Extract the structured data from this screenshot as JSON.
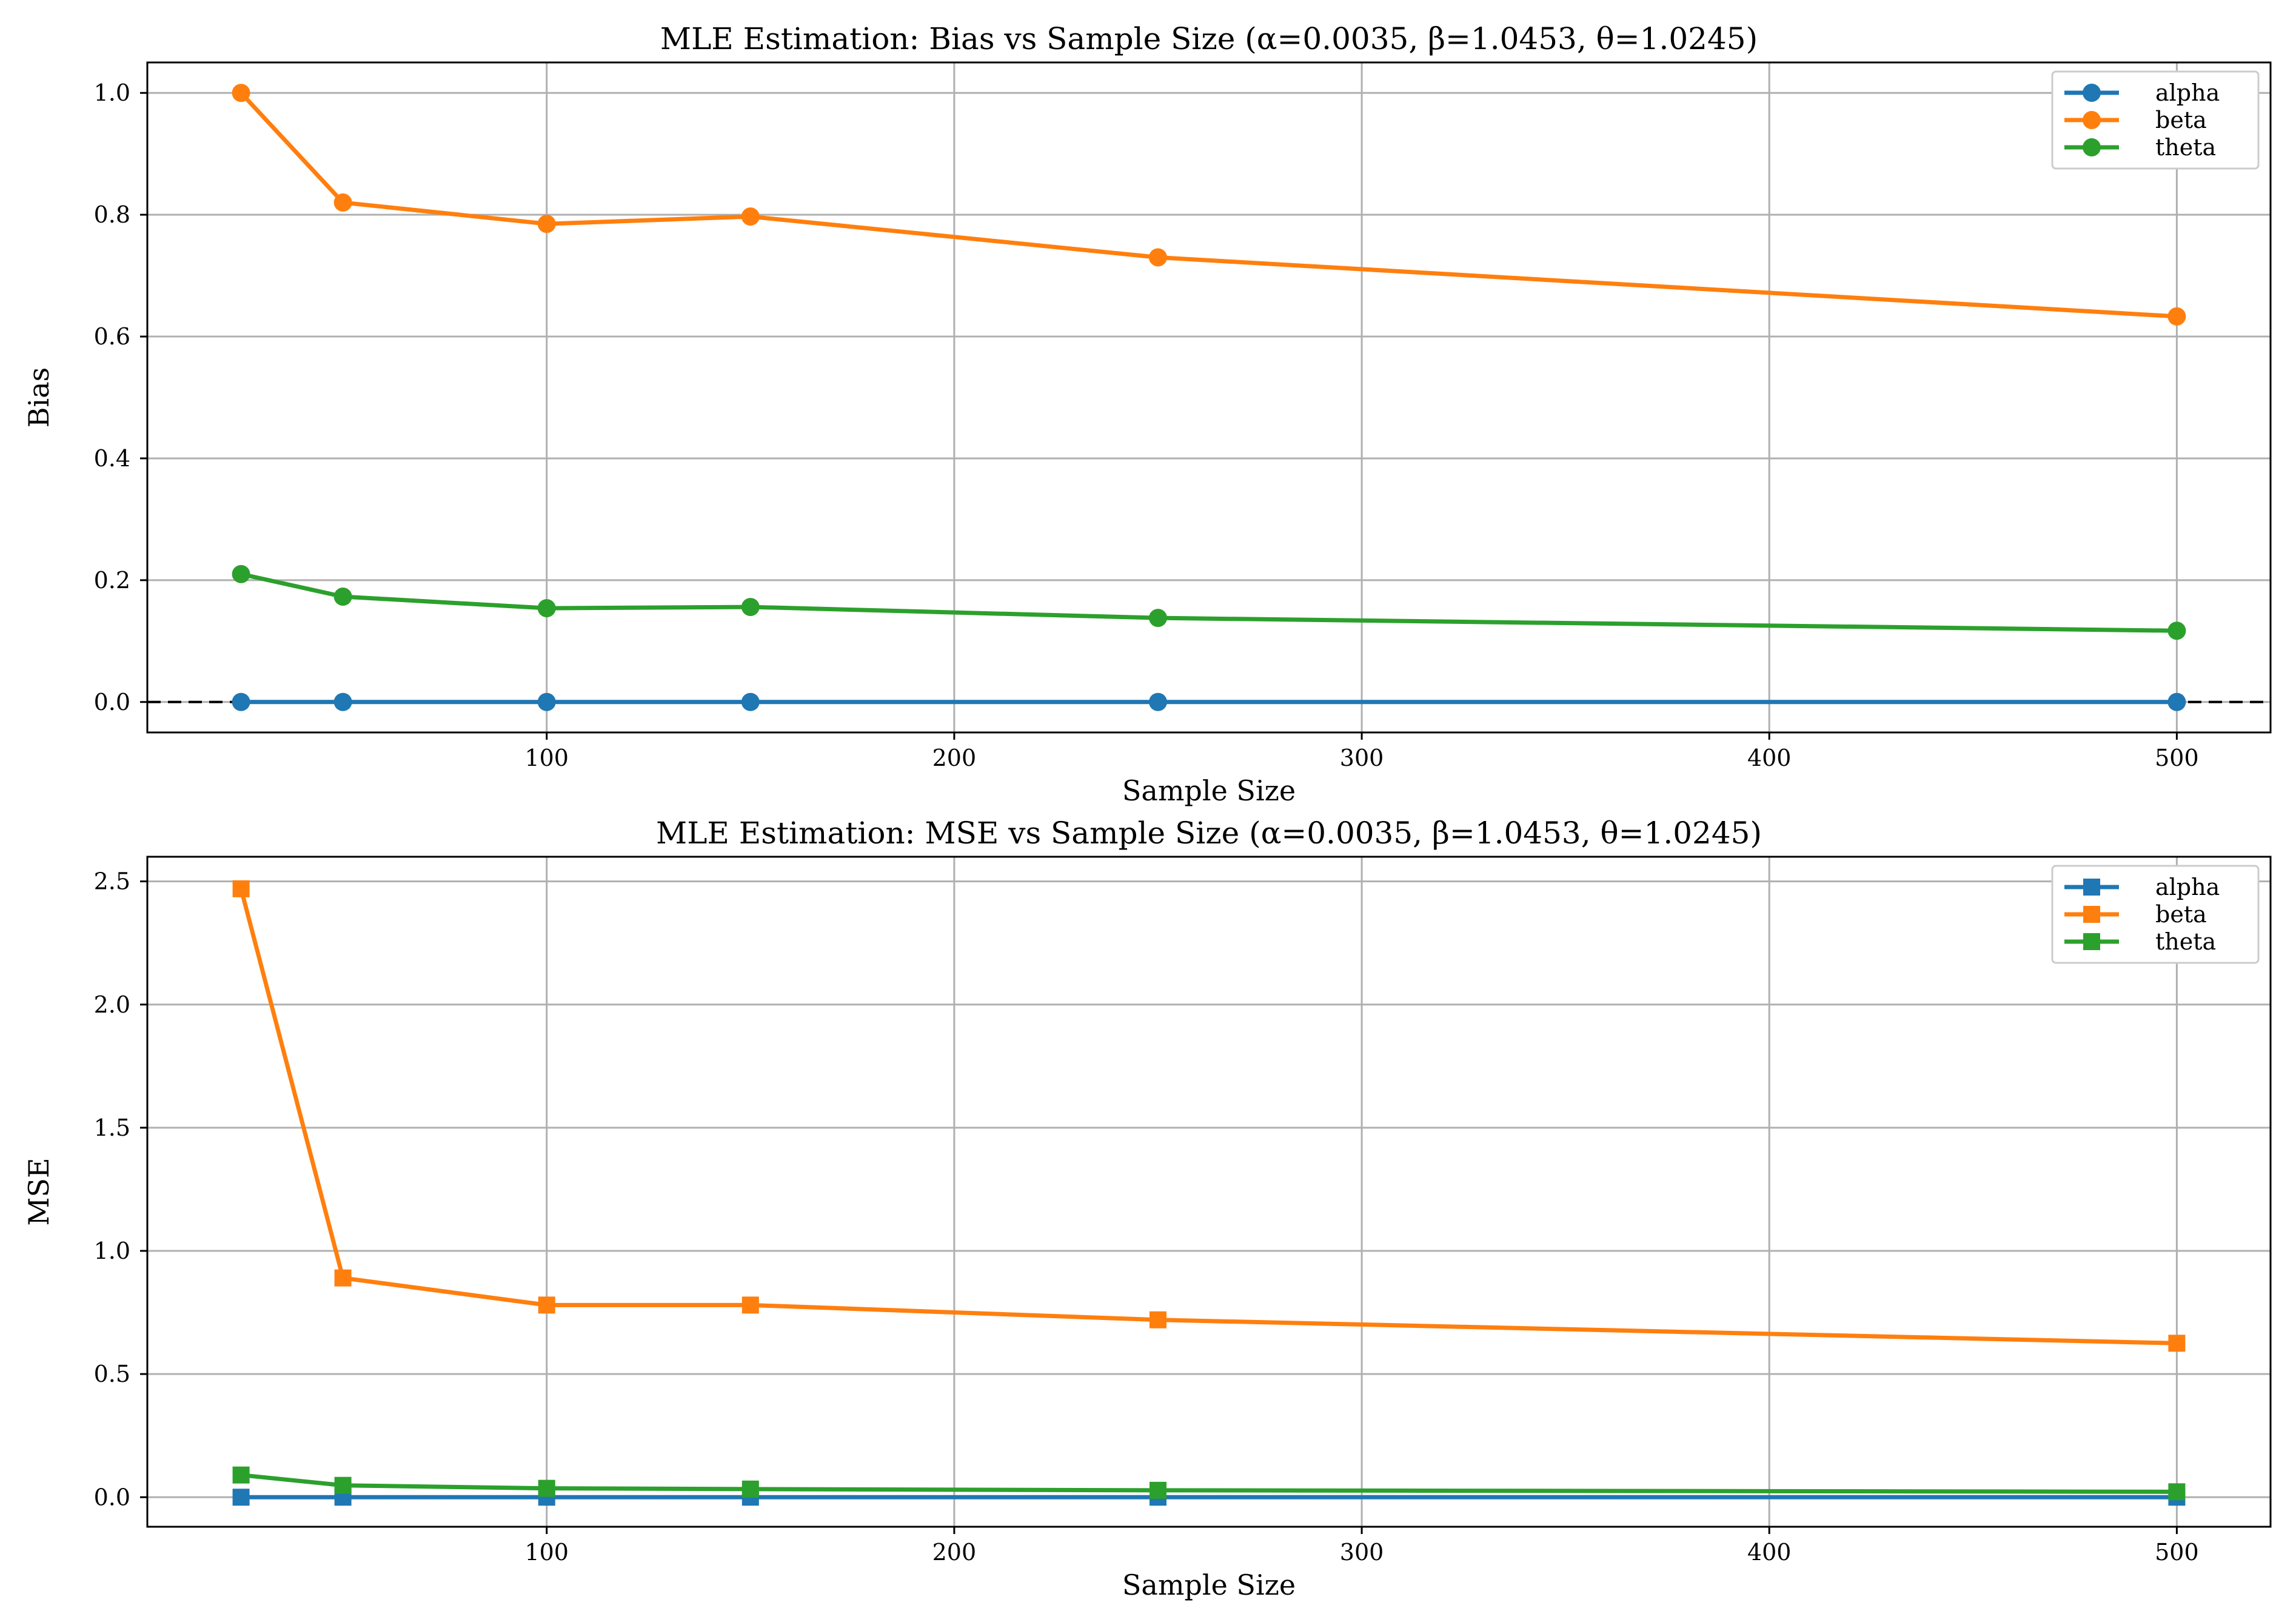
{
  "chart_data": [
    {
      "type": "line",
      "title": "MLE Estimation: Bias vs Sample Size (α=0.0035, β=1.0453, θ=1.0245)",
      "xlabel": "Sample Size",
      "ylabel": "Bias",
      "x": [
        25,
        50,
        100,
        150,
        250,
        500
      ],
      "xlim": [
        2,
        523
      ],
      "ylim": [
        -0.05,
        1.05
      ],
      "xticks": [
        100,
        200,
        300,
        400,
        500
      ],
      "yticks": [
        0.0,
        0.2,
        0.4,
        0.6,
        0.8,
        1.0
      ],
      "ytick_labels": [
        "0.0",
        "0.2",
        "0.4",
        "0.6",
        "0.8",
        "1.0"
      ],
      "grid": true,
      "legend_position": "top-right",
      "marker": "circle",
      "reference_line": {
        "y": 0,
        "style": "dashed",
        "color": "#000000"
      },
      "series": [
        {
          "name": "alpha",
          "color": "#1f77b4",
          "values": [
            0.0,
            0.0,
            0.0,
            0.0,
            0.0,
            0.0
          ]
        },
        {
          "name": "beta",
          "color": "#ff7f0e",
          "values": [
            1.0,
            0.82,
            0.785,
            0.797,
            0.73,
            0.633
          ]
        },
        {
          "name": "theta",
          "color": "#2ca02c",
          "values": [
            0.21,
            0.173,
            0.154,
            0.156,
            0.138,
            0.117
          ]
        }
      ]
    },
    {
      "type": "line",
      "title": "MLE Estimation: MSE vs Sample Size (α=0.0035, β=1.0453, θ=1.0245)",
      "xlabel": "Sample Size",
      "ylabel": "MSE",
      "x": [
        25,
        50,
        100,
        150,
        250,
        500
      ],
      "xlim": [
        2,
        523
      ],
      "ylim": [
        -0.12,
        2.6
      ],
      "xticks": [
        100,
        200,
        300,
        400,
        500
      ],
      "yticks": [
        0.0,
        0.5,
        1.0,
        1.5,
        2.0,
        2.5
      ],
      "ytick_labels": [
        "0.0",
        "0.5",
        "1.0",
        "1.5",
        "2.0",
        "2.5"
      ],
      "grid": true,
      "legend_position": "top-right",
      "marker": "square",
      "series": [
        {
          "name": "alpha",
          "color": "#1f77b4",
          "values": [
            0.0,
            0.0,
            0.0,
            0.0,
            0.0,
            0.0
          ]
        },
        {
          "name": "beta",
          "color": "#ff7f0e",
          "values": [
            2.47,
            0.89,
            0.78,
            0.78,
            0.72,
            0.625
          ]
        },
        {
          "name": "theta",
          "color": "#2ca02c",
          "values": [
            0.09,
            0.048,
            0.036,
            0.033,
            0.028,
            0.022
          ]
        }
      ]
    }
  ]
}
